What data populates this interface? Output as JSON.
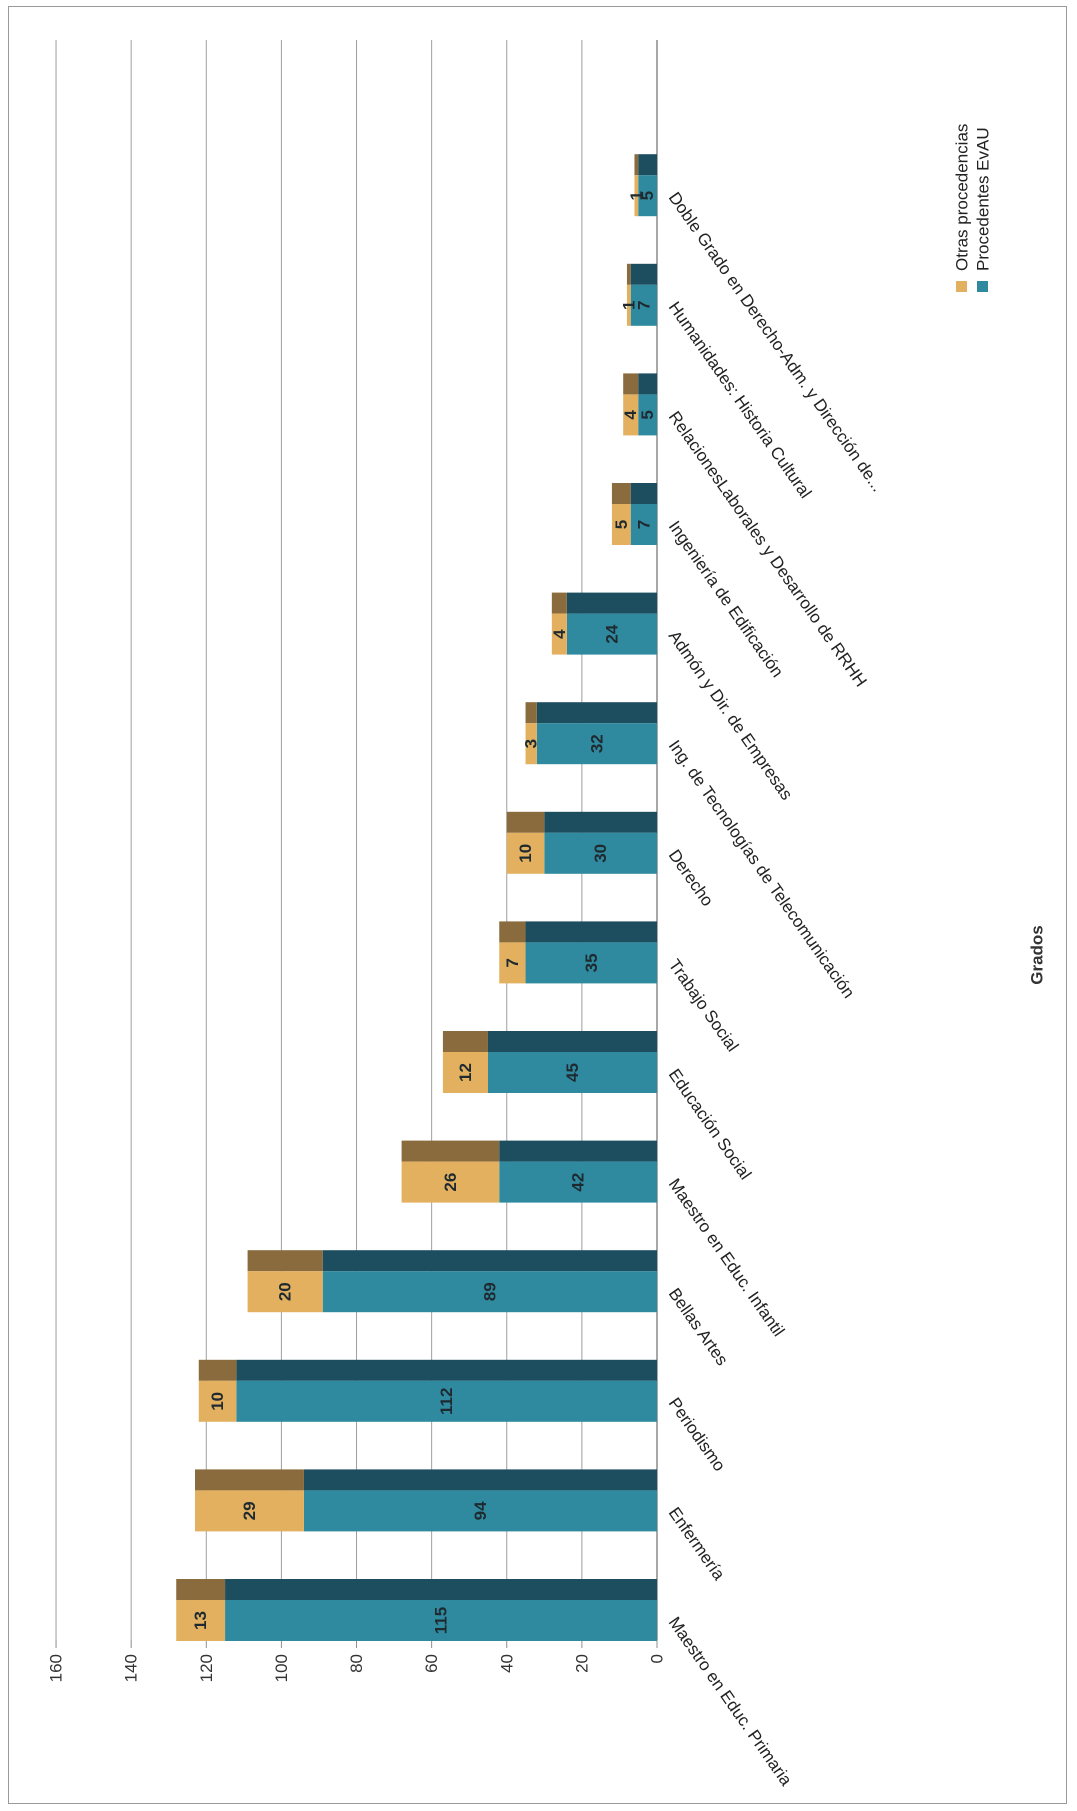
{
  "chart_data": {
    "type": "bar",
    "stacked": true,
    "orientation": "vertical-value-axis-rotated",
    "xlabel": "Grados",
    "ylabel": "",
    "ylim": [
      0,
      160
    ],
    "y_ticks": [
      "0",
      "20",
      "40",
      "60",
      "80",
      "100",
      "120",
      "140",
      "160"
    ],
    "grid": true,
    "legend_position": "right",
    "categories": [
      "Maestro en Educ. Primaria",
      "Enfermería",
      "Periodismo",
      "Bellas Artes",
      "Maestro en Educ. Infantil",
      "Educación Social",
      "Trabajo Social",
      "Derecho",
      "Ing. de Tecnologías de Telecomunicación",
      "Admón y Dir. de Empresas",
      "Ingeniería de Edificación",
      "RelacionesLaborales y Desarrollo de RRHH",
      "Humanidades: Historia Cultural",
      "Doble Grado en Derecho-Adm. y Dirección de..."
    ],
    "series": [
      {
        "name": "Procedentes EvAU",
        "color": "#2f8aa0",
        "top_color": "#1d4e60",
        "values": [
          115,
          94,
          112,
          89,
          42,
          45,
          35,
          30,
          32,
          24,
          7,
          5,
          7,
          5
        ],
        "labels": [
          "115",
          "94",
          "112",
          "89",
          "42",
          "45",
          "35",
          "30",
          "32",
          "24",
          "7",
          "5",
          "7",
          "5"
        ]
      },
      {
        "name": "Otras procedencias",
        "color": "#e3b060",
        "top_color": "#8a6b3e",
        "values": [
          13,
          29,
          10,
          20,
          26,
          12,
          7,
          10,
          3,
          4,
          5,
          4,
          1,
          1
        ],
        "labels": [
          "13",
          "29",
          "10",
          "20",
          "26",
          "12",
          "7",
          "10",
          "3",
          "4",
          "5",
          "4",
          "1",
          "1"
        ]
      }
    ]
  }
}
